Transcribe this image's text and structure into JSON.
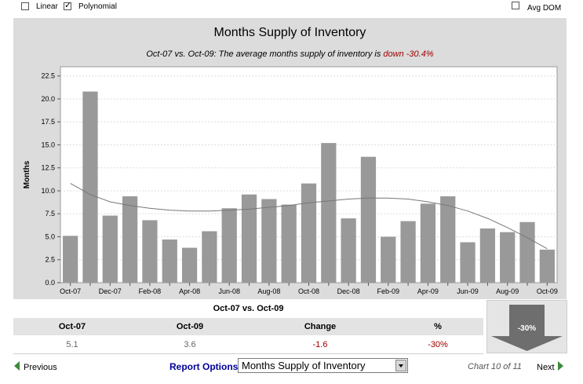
{
  "options": {
    "linear_label": "Linear",
    "linear_checked": false,
    "polynomial_label": "Polynomial",
    "polynomial_checked": true,
    "avg_dom_label": "Avg DOM",
    "avg_dom_checked": false
  },
  "chart_data": {
    "type": "bar",
    "title": "Months Supply of Inventory",
    "subtitle_prefix": "Oct-07 vs. Oct-09: The average months supply of inventory is ",
    "subtitle_change": "down -30.4%",
    "ylabel": "Months",
    "xlabel": "",
    "ylim": [
      0,
      23.5
    ],
    "yticks": [
      "0.0",
      "2.5",
      "5.0",
      "7.5",
      "10.0",
      "12.5",
      "15.0",
      "17.5",
      "20.0",
      "22.5"
    ],
    "categories": [
      "Oct-07",
      "Nov-07",
      "Dec-07",
      "Jan-08",
      "Feb-08",
      "Mar-08",
      "Apr-08",
      "May-08",
      "Jun-08",
      "Jul-08",
      "Aug-08",
      "Sep-08",
      "Oct-08",
      "Nov-08",
      "Dec-08",
      "Jan-09",
      "Feb-09",
      "Mar-09",
      "Apr-09",
      "May-09",
      "Jun-09",
      "Jul-09",
      "Aug-09",
      "Sep-09",
      "Oct-09"
    ],
    "xtick_labels": [
      "Oct-07",
      "Dec-07",
      "Feb-08",
      "Apr-08",
      "Jun-08",
      "Aug-08",
      "Oct-08",
      "Dec-08",
      "Feb-09",
      "Apr-09",
      "Jun-09",
      "Aug-09",
      "Oct-09"
    ],
    "values": [
      5.1,
      20.8,
      7.3,
      9.4,
      6.8,
      4.7,
      3.8,
      5.6,
      8.1,
      9.6,
      9.1,
      8.5,
      10.8,
      15.2,
      7.0,
      13.7,
      5.0,
      6.7,
      8.6,
      9.4,
      4.4,
      5.9,
      5.5,
      6.6,
      3.6
    ],
    "trend": {
      "name": "Polynomial",
      "values": [
        10.8,
        9.6,
        8.8,
        8.4,
        8.1,
        7.9,
        7.8,
        7.8,
        7.9,
        8.0,
        8.2,
        8.4,
        8.7,
        8.9,
        9.1,
        9.2,
        9.2,
        9.1,
        8.8,
        8.4,
        7.8,
        7.0,
        6.0,
        4.9,
        3.7
      ]
    },
    "grid": true,
    "bar_color": "#999999"
  },
  "summary": {
    "title": "Oct-07 vs. Oct-09",
    "columns": [
      "Oct-07",
      "Oct-09",
      "Change",
      "%"
    ],
    "values": [
      "5.1",
      "3.6",
      "-1.6",
      "-30%"
    ],
    "arrow_label": "-30%"
  },
  "footer": {
    "previous": "Previous",
    "report_options": "Report Options",
    "selected_report": "Months Supply of Inventory",
    "chart_counter": "Chart 10 of 11",
    "next": "Next"
  },
  "colors": {
    "down": "#a00000",
    "link": "#000099",
    "nav_arrow": "#3a8a3a",
    "big_arrow": "#6e6e6e"
  }
}
